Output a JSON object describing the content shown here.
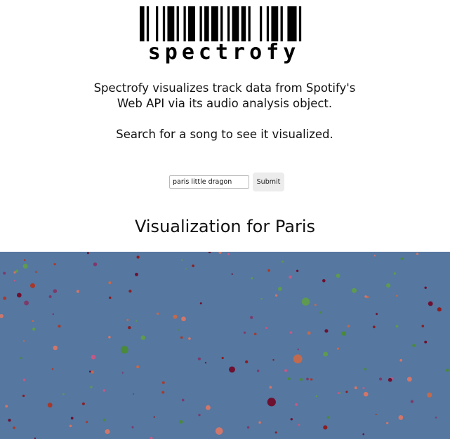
{
  "logo": {
    "wordmark": "spectrofy",
    "barcode_bars": [
      2,
      1,
      1,
      3,
      1,
      2,
      1,
      1,
      3,
      1,
      1,
      2,
      1,
      1,
      3,
      2,
      1,
      1,
      2,
      1,
      3,
      1,
      1,
      2,
      1,
      1,
      3,
      1,
      2,
      1,
      1,
      4,
      1,
      2,
      1,
      1,
      3,
      1,
      1,
      2,
      4,
      1,
      1,
      3
    ]
  },
  "intro": {
    "description": "Spectrofy visualizes track data from Spotify's Web API via its audio analysis object.",
    "search_prompt": "Search for a song to see it visualized."
  },
  "search": {
    "value": "paris little dragon",
    "submit_label": "Submit"
  },
  "visualization": {
    "title": "Visualization for Paris",
    "background_color": "#5577a0",
    "dot_colors": [
      "#a8392a",
      "#6e1030",
      "#5e9a50",
      "#c06a50",
      "#c25a86",
      "#7d3a6a",
      "#8a1e22",
      "#4a8a3a",
      "#d0766a"
    ]
  }
}
